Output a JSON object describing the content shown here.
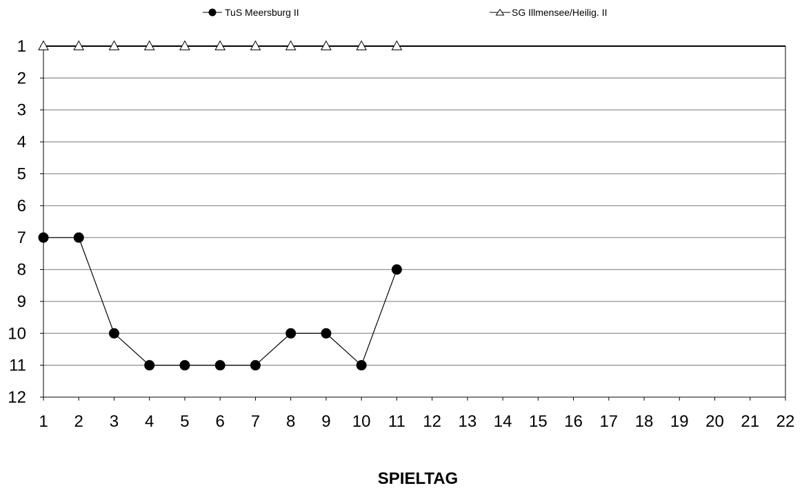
{
  "chart_data": {
    "type": "line",
    "xlabel": "SPIELTAG",
    "ylabel": "",
    "x": [
      1,
      2,
      3,
      4,
      5,
      6,
      7,
      8,
      9,
      10,
      11,
      12,
      13,
      14,
      15,
      16,
      17,
      18,
      19,
      20,
      21,
      22
    ],
    "xlim": [
      1,
      22
    ],
    "ylim": [
      1,
      12
    ],
    "y_inverted": true,
    "y_ticks": [
      1,
      2,
      3,
      4,
      5,
      6,
      7,
      8,
      9,
      10,
      11,
      12
    ],
    "grid": "horizontal",
    "legend_position": "top",
    "series": [
      {
        "name": "TuS Meersburg II",
        "marker": "filled-circle",
        "color": "#000000",
        "x": [
          1,
          2,
          3,
          4,
          5,
          6,
          7,
          8,
          9,
          10,
          11
        ],
        "values": [
          7,
          7,
          10,
          11,
          11,
          11,
          11,
          10,
          10,
          11,
          8
        ]
      },
      {
        "name": "SG Illmensee/Heilig. II",
        "marker": "open-triangle",
        "color": "#000000",
        "x": [
          1,
          2,
          3,
          4,
          5,
          6,
          7,
          8,
          9,
          10,
          11
        ],
        "values": [
          1,
          1,
          1,
          1,
          1,
          1,
          1,
          1,
          1,
          1,
          1
        ]
      }
    ]
  }
}
